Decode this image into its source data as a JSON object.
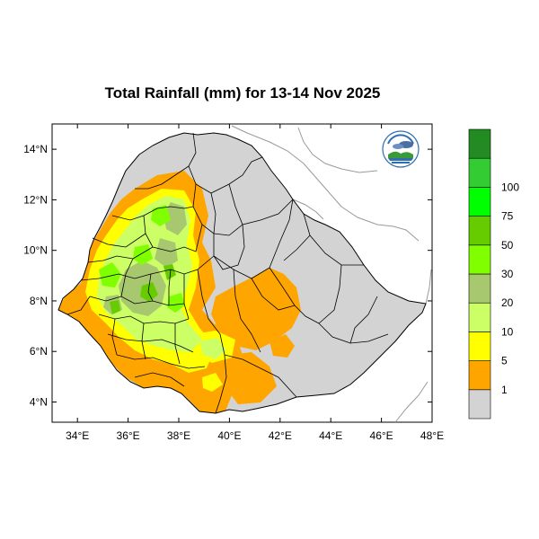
{
  "title": "Total Rainfall (mm) for 13-14 Nov 2025",
  "map": {
    "lon_range": [
      33,
      48
    ],
    "lat_range": [
      3.2,
      15
    ],
    "lon_ticks": [
      {
        "value": 34,
        "label": "34°E"
      },
      {
        "value": 36,
        "label": "36°E"
      },
      {
        "value": 38,
        "label": "38°E"
      },
      {
        "value": 40,
        "label": "40°E"
      },
      {
        "value": 42,
        "label": "42°E"
      },
      {
        "value": 44,
        "label": "44°E"
      },
      {
        "value": 46,
        "label": "46°E"
      },
      {
        "value": 48,
        "label": "48°E"
      }
    ],
    "lat_ticks": [
      {
        "value": 14,
        "label": "14°N"
      },
      {
        "value": 12,
        "label": "12°N"
      },
      {
        "value": 10,
        "label": "10°N"
      },
      {
        "value": 8,
        "label": "8°N"
      },
      {
        "value": 6,
        "label": "6°N"
      },
      {
        "value": 4,
        "label": "4°N"
      }
    ],
    "land_color": "#d3d3d3",
    "boundary_color": "#000000",
    "neighbor_border_color": "#9a9a9a"
  },
  "colorbar": {
    "colors": [
      "#d3d3d3",
      "#ffa500",
      "#ffff00",
      "#ccff66",
      "#a8c870",
      "#80ff00",
      "#66cc00",
      "#00ff00",
      "#33cc33",
      "#228b22"
    ],
    "labels": [
      "1",
      "5",
      "10",
      "20",
      "30",
      "50",
      "75",
      "100"
    ]
  },
  "logo": {
    "name": "ethiopian-meteorology-institute-logo"
  }
}
